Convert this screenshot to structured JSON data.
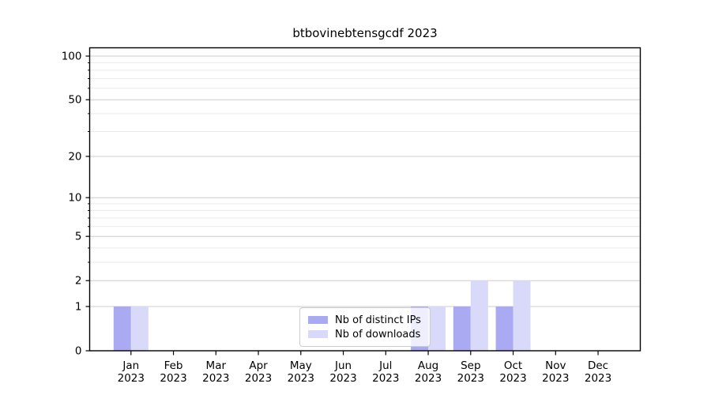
{
  "chart_data": {
    "type": "bar",
    "title": "btbovinebtensgcdf 2023",
    "year": "2023",
    "months": [
      "Jan",
      "Feb",
      "Mar",
      "Apr",
      "May",
      "Jun",
      "Jul",
      "Aug",
      "Sep",
      "Oct",
      "Nov",
      "Dec"
    ],
    "categories": [
      "Jan 2023",
      "Feb 2023",
      "Mar 2023",
      "Apr 2023",
      "May 2023",
      "Jun 2023",
      "Jul 2023",
      "Aug 2023",
      "Sep 2023",
      "Oct 2023",
      "Nov 2023",
      "Dec 2023"
    ],
    "series": [
      {
        "name": "Nb of distinct IPs",
        "color": "#aaaaf2",
        "values": [
          1,
          0,
          0,
          0,
          0,
          0,
          0,
          1,
          1,
          1,
          0,
          0
        ]
      },
      {
        "name": "Nb of downloads",
        "color": "#d9d9f9",
        "values": [
          1,
          0,
          0,
          0,
          0,
          0,
          0,
          1,
          2,
          2,
          0,
          0
        ]
      }
    ],
    "xlabel": "",
    "ylabel": "",
    "yscale": "log1p",
    "ylim": [
      0,
      100
    ],
    "ytick_values": [
      0,
      1,
      2,
      5,
      10,
      20,
      50,
      100
    ],
    "ytick_minor_values": [
      3,
      4,
      6,
      7,
      8,
      9,
      30,
      40,
      60,
      70,
      80,
      90
    ],
    "grid": "horizontal",
    "legend_position": "lower center"
  },
  "colors": {
    "background": "#ffffff",
    "spine": "#000000",
    "grid_major": "#cdcdcd",
    "grid_minor": "#eaeaea",
    "tick_text": "#000000",
    "legend_border": "#cccccc"
  }
}
